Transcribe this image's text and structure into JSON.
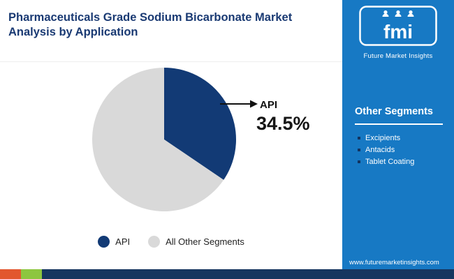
{
  "header": {
    "title": "Pharmaceuticals Grade Sodium Bicarbonate Market Analysis by Application"
  },
  "brand": {
    "logo_text": "fmi",
    "tagline": "Future Market Insights"
  },
  "sidebar": {
    "heading": "Other Segments",
    "items": [
      "Excipients",
      "Antacids",
      "Tablet Coating"
    ],
    "website": "www.futuremarketinsights.com"
  },
  "callout": {
    "label": "API",
    "value": "34.5%"
  },
  "chart_data": {
    "type": "pie",
    "title": "Pharmaceuticals Grade Sodium Bicarbonate Market Analysis by Application",
    "labels": [
      "API",
      "All Other Segments"
    ],
    "values": [
      34.5,
      65.5
    ],
    "colors": [
      "#123a75",
      "#d9d9d9"
    ],
    "start_angle_deg": 0,
    "direction": "clockwise",
    "legend_position": "bottom",
    "annotation": "API 34.5%"
  },
  "colors": {
    "title_navy": "#1a3a73",
    "sidebar_blue": "#1779c4",
    "pie_blue": "#123a75",
    "pie_gray": "#d9d9d9",
    "stripe_orange": "#e2572f",
    "stripe_green": "#8dc63f",
    "stripe_navy": "#16365f"
  }
}
